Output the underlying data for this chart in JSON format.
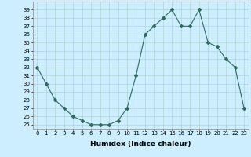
{
  "x": [
    0,
    1,
    2,
    3,
    4,
    5,
    6,
    7,
    8,
    9,
    10,
    11,
    12,
    13,
    14,
    15,
    16,
    17,
    18,
    19,
    20,
    21,
    22,
    23
  ],
  "y": [
    32,
    30,
    28,
    27,
    26,
    25.5,
    25,
    25,
    25,
    25.5,
    27,
    31,
    36,
    37,
    38,
    39,
    37,
    37,
    39,
    35,
    34.5,
    33,
    32,
    27
  ],
  "line_color": "#2e6b5e",
  "marker": "D",
  "marker_size": 2.0,
  "bg_color": "#cceeff",
  "grid_color": "#aacccc",
  "xlabel": "Humidex (Indice chaleur)",
  "xlim": [
    -0.5,
    23.5
  ],
  "ylim": [
    24.5,
    40
  ],
  "yticks": [
    25,
    26,
    27,
    28,
    29,
    30,
    31,
    32,
    33,
    34,
    35,
    36,
    37,
    38,
    39
  ],
  "xticks": [
    0,
    1,
    2,
    3,
    4,
    5,
    6,
    7,
    8,
    9,
    10,
    11,
    12,
    13,
    14,
    15,
    16,
    17,
    18,
    19,
    20,
    21,
    22,
    23
  ],
  "tick_fontsize": 5.0,
  "xlabel_fontsize": 6.5
}
